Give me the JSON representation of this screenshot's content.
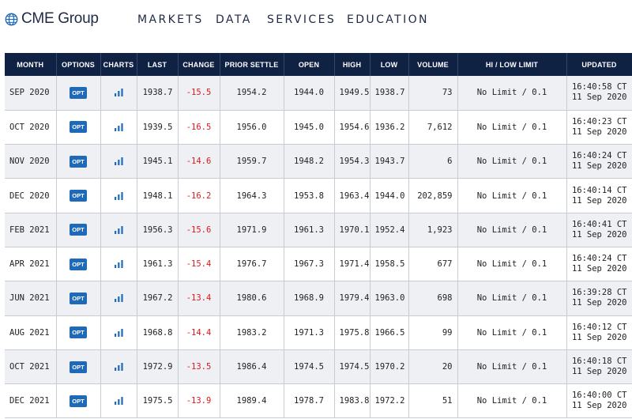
{
  "header": {
    "logo_text": "CME Group",
    "nav": [
      "MARKETS",
      "DATA",
      "SERVICES",
      "EDUCATION"
    ]
  },
  "table": {
    "columns": [
      "MONTH",
      "OPTIONS",
      "CHARTS",
      "LAST",
      "CHANGE",
      "PRIOR SETTLE",
      "OPEN",
      "HIGH",
      "LOW",
      "VOLUME",
      "HI / LOW LIMIT",
      "UPDATED"
    ],
    "opt_label": "OPT",
    "rows": [
      {
        "month": "SEP 2020",
        "last": "1938.7",
        "change": "-15.5",
        "prior": "1954.2",
        "open": "1944.0",
        "high": "1949.5",
        "low": "1938.7",
        "volume": "73",
        "limit": "No Limit / 0.1",
        "time": "16:40:58 CT",
        "date": "11 Sep 2020"
      },
      {
        "month": "OCT 2020",
        "last": "1939.5",
        "change": "-16.5",
        "prior": "1956.0",
        "open": "1945.0",
        "high": "1954.6",
        "low": "1936.2",
        "volume": "7,612",
        "limit": "No Limit / 0.1",
        "time": "16:40:23 CT",
        "date": "11 Sep 2020"
      },
      {
        "month": "NOV 2020",
        "last": "1945.1",
        "change": "-14.6",
        "prior": "1959.7",
        "open": "1948.2",
        "high": "1954.3",
        "low": "1943.7",
        "volume": "6",
        "limit": "No Limit / 0.1",
        "time": "16:40:24 CT",
        "date": "11 Sep 2020"
      },
      {
        "month": "DEC 2020",
        "last": "1948.1",
        "change": "-16.2",
        "prior": "1964.3",
        "open": "1953.8",
        "high": "1963.4",
        "low": "1944.0",
        "volume": "202,859",
        "limit": "No Limit / 0.1",
        "time": "16:40:14 CT",
        "date": "11 Sep 2020"
      },
      {
        "month": "FEB 2021",
        "last": "1956.3",
        "change": "-15.6",
        "prior": "1971.9",
        "open": "1961.3",
        "high": "1970.1",
        "low": "1952.4",
        "volume": "1,923",
        "limit": "No Limit / 0.1",
        "time": "16:40:41 CT",
        "date": "11 Sep 2020"
      },
      {
        "month": "APR 2021",
        "last": "1961.3",
        "change": "-15.4",
        "prior": "1976.7",
        "open": "1967.3",
        "high": "1971.4",
        "low": "1958.5",
        "volume": "677",
        "limit": "No Limit / 0.1",
        "time": "16:40:24 CT",
        "date": "11 Sep 2020"
      },
      {
        "month": "JUN 2021",
        "last": "1967.2",
        "change": "-13.4",
        "prior": "1980.6",
        "open": "1968.9",
        "high": "1979.4",
        "low": "1963.0",
        "volume": "698",
        "limit": "No Limit / 0.1",
        "time": "16:39:28 CT",
        "date": "11 Sep 2020"
      },
      {
        "month": "AUG 2021",
        "last": "1968.8",
        "change": "-14.4",
        "prior": "1983.2",
        "open": "1971.3",
        "high": "1975.8",
        "low": "1966.5",
        "volume": "99",
        "limit": "No Limit / 0.1",
        "time": "16:40:12 CT",
        "date": "11 Sep 2020"
      },
      {
        "month": "OCT 2021",
        "last": "1972.9",
        "change": "-13.5",
        "prior": "1986.4",
        "open": "1974.5",
        "high": "1974.5",
        "low": "1970.2",
        "volume": "20",
        "limit": "No Limit / 0.1",
        "time": "16:40:18 CT",
        "date": "11 Sep 2020"
      },
      {
        "month": "DEC 2021",
        "last": "1975.5",
        "change": "-13.9",
        "prior": "1989.4",
        "open": "1978.7",
        "high": "1983.8",
        "low": "1972.2",
        "volume": "51",
        "limit": "No Limit / 0.1",
        "time": "16:40:00 CT",
        "date": "11 Sep 2020"
      }
    ]
  },
  "colors": {
    "header_bg": "#0f2244",
    "opt_button": "#1f6ab8",
    "change_negative": "#e0181b",
    "row_alt": "#eef0f3"
  },
  "icons": {
    "logo": "globe-icon",
    "charts": "bar-chart-icon"
  }
}
